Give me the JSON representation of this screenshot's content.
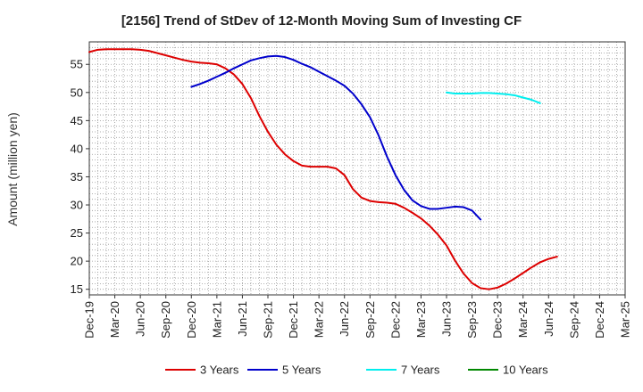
{
  "chart_data": {
    "type": "line",
    "title": "[2156]  Trend of StDev of 12-Month Moving Sum of Investing CF",
    "ylabel": "Amount (million yen)",
    "xlabel": "",
    "ylim": [
      14,
      59
    ],
    "yticks": [
      15,
      20,
      25,
      30,
      35,
      40,
      45,
      50,
      55
    ],
    "x_start": "Dec-19",
    "x_end": "Mar-25",
    "xtick_labels": [
      "Dec-19",
      "Mar-20",
      "Jun-20",
      "Sep-20",
      "Dec-20",
      "Mar-21",
      "Jun-21",
      "Sep-21",
      "Dec-21",
      "Mar-22",
      "Jun-22",
      "Sep-22",
      "Dec-22",
      "Mar-23",
      "Jun-23",
      "Sep-23",
      "Dec-23",
      "Mar-24",
      "Jun-24",
      "Sep-24",
      "Dec-24",
      "Mar-25"
    ],
    "grid": true,
    "legend_position": "bottom",
    "series": [
      {
        "name": "3 Years",
        "color": "#dd0000",
        "start": "Dec-19",
        "values": [
          57.2,
          57.6,
          57.7,
          57.7,
          57.7,
          57.7,
          57.6,
          57.4,
          57.0,
          56.6,
          56.2,
          55.8,
          55.5,
          55.3,
          55.2,
          55.0,
          54.3,
          53.2,
          51.5,
          49.0,
          45.8,
          43.0,
          40.7,
          39.0,
          37.8,
          37.0,
          36.8,
          36.8,
          36.8,
          36.5,
          35.3,
          32.8,
          31.3,
          30.7,
          30.5,
          30.4,
          30.2,
          29.5,
          28.6,
          27.6,
          26.3,
          24.7,
          22.8,
          20.1,
          17.8,
          16.1,
          15.2,
          15.0,
          15.3,
          16.0,
          16.9,
          17.9,
          18.9,
          19.8,
          20.4,
          20.8
        ]
      },
      {
        "name": "5 Years",
        "color": "#0000cc",
        "start": "Dec-20",
        "values": [
          51.0,
          51.5,
          52.1,
          52.8,
          53.5,
          54.3,
          55.0,
          55.7,
          56.1,
          56.4,
          56.5,
          56.3,
          55.8,
          55.1,
          54.5,
          53.7,
          52.9,
          52.1,
          51.2,
          49.8,
          47.9,
          45.6,
          42.4,
          38.6,
          35.3,
          32.7,
          30.8,
          29.8,
          29.3,
          29.3,
          29.5,
          29.7,
          29.6,
          29.0,
          27.4
        ]
      },
      {
        "name": "7 Years",
        "color": "#00eeee",
        "start": "Jun-23",
        "values": [
          50.0,
          49.8,
          49.8,
          49.8,
          49.9,
          49.9,
          49.8,
          49.7,
          49.5,
          49.1,
          48.7,
          48.1
        ]
      },
      {
        "name": "10 Years",
        "color": "#008800",
        "start": "Dec-19",
        "values": []
      }
    ]
  }
}
